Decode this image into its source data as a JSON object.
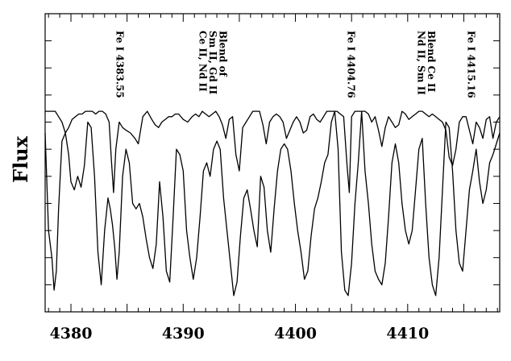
{
  "chart_data": {
    "type": "line",
    "title": "",
    "xlabel": "",
    "ylabel": "Flux",
    "xlim": [
      4377.7,
      4418.2
    ],
    "ylim": [
      0.0,
      1.1
    ],
    "grid": false,
    "x_ticks": [
      4380,
      4390,
      4400,
      4410
    ],
    "x_tick_labels": [
      "4380",
      "4390",
      "4400",
      "4410"
    ],
    "annotations": [
      {
        "lines": [
          "Fe I 4383.55"
        ],
        "x": 4384.3
      },
      {
        "lines": [
          "Blend of",
          "Sm II, Gd II",
          "Ce II, Nd II"
        ],
        "x": 4392.6
      },
      {
        "lines": [
          "Fe I 4404.76"
        ],
        "x": 4404.9
      },
      {
        "lines": [
          "Blend Ce II",
          "Nd II, Sm II"
        ],
        "x": 4411.6
      },
      {
        "lines": [
          "Fe I 4415.16"
        ],
        "x": 4415.6
      }
    ],
    "series": [
      {
        "x": [
          4377.7,
          4378.2,
          4378.6,
          4378.9,
          4379.2,
          4379.5,
          4379.8,
          4380.1,
          4380.4,
          4380.7,
          4381.0,
          4381.3,
          4381.6,
          4381.9,
          4382.2,
          4382.5,
          4382.8,
          4383.1,
          4383.4,
          4383.6,
          4383.8,
          4384.0,
          4384.3,
          4384.6,
          4384.9,
          4385.3,
          4385.7,
          4386.0,
          4386.4,
          4386.8,
          4387.2,
          4387.5,
          4387.8,
          4388.1,
          4388.4,
          4388.7,
          4389.0,
          4389.3,
          4389.6,
          4390.0,
          4390.4,
          4390.8,
          4391.1,
          4391.4,
          4391.7,
          4392.0,
          4392.3,
          4392.6,
          4392.9,
          4393.2,
          4393.5,
          4393.8,
          4394.1,
          4394.4,
          4394.7,
          4395.0,
          4395.3,
          4395.6,
          4395.9,
          4396.2,
          4396.5,
          4396.8,
          4397.1,
          4397.4,
          4397.7,
          4398.0,
          4398.3,
          4398.6,
          4398.9,
          4399.2,
          4399.5,
          4399.8,
          4400.1,
          4400.4,
          4400.7,
          4401.0,
          4401.3,
          4401.6,
          4401.9,
          4402.2,
          4402.5,
          4402.8,
          4403.1,
          4403.4,
          4403.7,
          4404.0,
          4404.3,
          4404.6,
          4404.8,
          4405.0,
          4405.3,
          4405.6,
          4405.9,
          4406.2,
          4406.5,
          4406.8,
          4407.1,
          4407.4,
          4407.7,
          4408.0,
          4408.3,
          4408.6,
          4408.9,
          4409.2,
          4409.5,
          4409.8,
          4410.1,
          4410.4,
          4410.7,
          4411.0,
          4411.3,
          4411.6,
          4411.9,
          4412.2,
          4412.5,
          4412.8,
          4413.1,
          4413.4,
          4413.7,
          4414.0,
          4414.3,
          4414.6,
          4414.9,
          4415.2,
          4415.5,
          4415.8,
          4416.1,
          4416.4,
          4416.7,
          4417.0,
          4417.3,
          4417.6,
          4417.9,
          4418.2
        ],
        "y": [
          0.74,
          0.74,
          0.74,
          0.72,
          0.7,
          0.66,
          0.68,
          0.71,
          0.72,
          0.73,
          0.73,
          0.74,
          0.74,
          0.74,
          0.73,
          0.74,
          0.74,
          0.73,
          0.7,
          0.56,
          0.44,
          0.6,
          0.7,
          0.68,
          0.67,
          0.66,
          0.64,
          0.62,
          0.72,
          0.74,
          0.71,
          0.69,
          0.68,
          0.7,
          0.71,
          0.72,
          0.72,
          0.73,
          0.73,
          0.71,
          0.7,
          0.72,
          0.73,
          0.72,
          0.74,
          0.73,
          0.72,
          0.73,
          0.74,
          0.72,
          0.69,
          0.64,
          0.71,
          0.72,
          0.58,
          0.52,
          0.68,
          0.7,
          0.72,
          0.74,
          0.74,
          0.74,
          0.69,
          0.62,
          0.7,
          0.72,
          0.73,
          0.72,
          0.7,
          0.64,
          0.67,
          0.7,
          0.72,
          0.7,
          0.66,
          0.67,
          0.72,
          0.73,
          0.71,
          0.7,
          0.72,
          0.74,
          0.74,
          0.74,
          0.74,
          0.73,
          0.72,
          0.54,
          0.44,
          0.72,
          0.74,
          0.74,
          0.74,
          0.74,
          0.73,
          0.7,
          0.72,
          0.67,
          0.61,
          0.68,
          0.72,
          0.7,
          0.68,
          0.69,
          0.74,
          0.73,
          0.71,
          0.72,
          0.73,
          0.74,
          0.74,
          0.73,
          0.72,
          0.73,
          0.72,
          0.71,
          0.7,
          0.67,
          0.57,
          0.54,
          0.6,
          0.7,
          0.72,
          0.72,
          0.67,
          0.62,
          0.7,
          0.68,
          0.64,
          0.71,
          0.72,
          0.64,
          0.7,
          0.72
        ]
      },
      {
        "x": [
          4377.7,
          4378.0,
          4378.3,
          4378.5,
          4378.7,
          4378.9,
          4379.2,
          4379.5,
          4379.8,
          4380.0,
          4380.3,
          4380.6,
          4380.9,
          4381.2,
          4381.5,
          4381.8,
          4382.1,
          4382.4,
          4382.7,
          4383.0,
          4383.3,
          4383.5,
          4383.7,
          4383.9,
          4384.1,
          4384.3,
          4384.6,
          4384.9,
          4385.2,
          4385.5,
          4385.8,
          4386.1,
          4386.4,
          4386.7,
          4387.0,
          4387.3,
          4387.6,
          4387.9,
          4388.2,
          4388.5,
          4388.8,
          4389.1,
          4389.4,
          4389.7,
          4390.0,
          4390.3,
          4390.6,
          4390.9,
          4391.2,
          4391.5,
          4391.8,
          4392.1,
          4392.4,
          4392.7,
          4393.0,
          4393.3,
          4393.6,
          4393.9,
          4394.2,
          4394.5,
          4394.8,
          4395.1,
          4395.4,
          4395.7,
          4396.0,
          4396.3,
          4396.6,
          4396.9,
          4397.2,
          4397.5,
          4397.8,
          4398.1,
          4398.4,
          4398.7,
          4399.0,
          4399.3,
          4399.6,
          4399.9,
          4400.2,
          4400.5,
          4400.8,
          4401.1,
          4401.4,
          4401.7,
          4402.0,
          4402.3,
          4402.6,
          4402.9,
          4403.2,
          4403.5,
          4403.8,
          4404.1,
          4404.4,
          4404.7,
          4405.0,
          4405.3,
          4405.6,
          4405.9,
          4406.2,
          4406.5,
          4406.8,
          4407.1,
          4407.4,
          4407.7,
          4408.0,
          4408.3,
          4408.6,
          4408.9,
          4409.2,
          4409.5,
          4409.8,
          4410.1,
          4410.4,
          4410.7,
          4411.0,
          4411.3,
          4411.6,
          4411.9,
          4412.2,
          4412.5,
          4412.8,
          4413.1,
          4413.4,
          4413.7,
          4414.0,
          4414.3,
          4414.6,
          4414.9,
          4415.2,
          4415.5,
          4415.8,
          4416.1,
          4416.4,
          4416.7,
          4417.0,
          4417.3,
          4417.6,
          4417.9,
          4418.2
        ],
        "y": [
          0.66,
          0.3,
          0.2,
          0.08,
          0.15,
          0.38,
          0.63,
          0.66,
          0.58,
          0.48,
          0.45,
          0.5,
          0.46,
          0.54,
          0.7,
          0.68,
          0.5,
          0.22,
          0.1,
          0.3,
          0.42,
          0.38,
          0.32,
          0.24,
          0.12,
          0.22,
          0.5,
          0.6,
          0.55,
          0.4,
          0.38,
          0.4,
          0.35,
          0.27,
          0.2,
          0.16,
          0.25,
          0.48,
          0.35,
          0.15,
          0.11,
          0.35,
          0.6,
          0.58,
          0.52,
          0.3,
          0.2,
          0.12,
          0.2,
          0.35,
          0.52,
          0.55,
          0.5,
          0.6,
          0.63,
          0.6,
          0.42,
          0.3,
          0.18,
          0.06,
          0.11,
          0.28,
          0.42,
          0.45,
          0.38,
          0.3,
          0.24,
          0.5,
          0.46,
          0.3,
          0.22,
          0.38,
          0.52,
          0.6,
          0.62,
          0.6,
          0.52,
          0.4,
          0.3,
          0.22,
          0.12,
          0.15,
          0.28,
          0.38,
          0.42,
          0.48,
          0.55,
          0.58,
          0.7,
          0.74,
          0.6,
          0.22,
          0.08,
          0.06,
          0.18,
          0.4,
          0.55,
          0.74,
          0.52,
          0.4,
          0.25,
          0.15,
          0.12,
          0.1,
          0.18,
          0.35,
          0.55,
          0.62,
          0.55,
          0.4,
          0.3,
          0.25,
          0.3,
          0.45,
          0.6,
          0.64,
          0.4,
          0.2,
          0.1,
          0.06,
          0.2,
          0.45,
          0.7,
          0.68,
          0.52,
          0.3,
          0.18,
          0.15,
          0.3,
          0.45,
          0.52,
          0.6,
          0.48,
          0.4,
          0.45,
          0.55,
          0.58,
          0.62,
          0.66
        ]
      }
    ]
  }
}
